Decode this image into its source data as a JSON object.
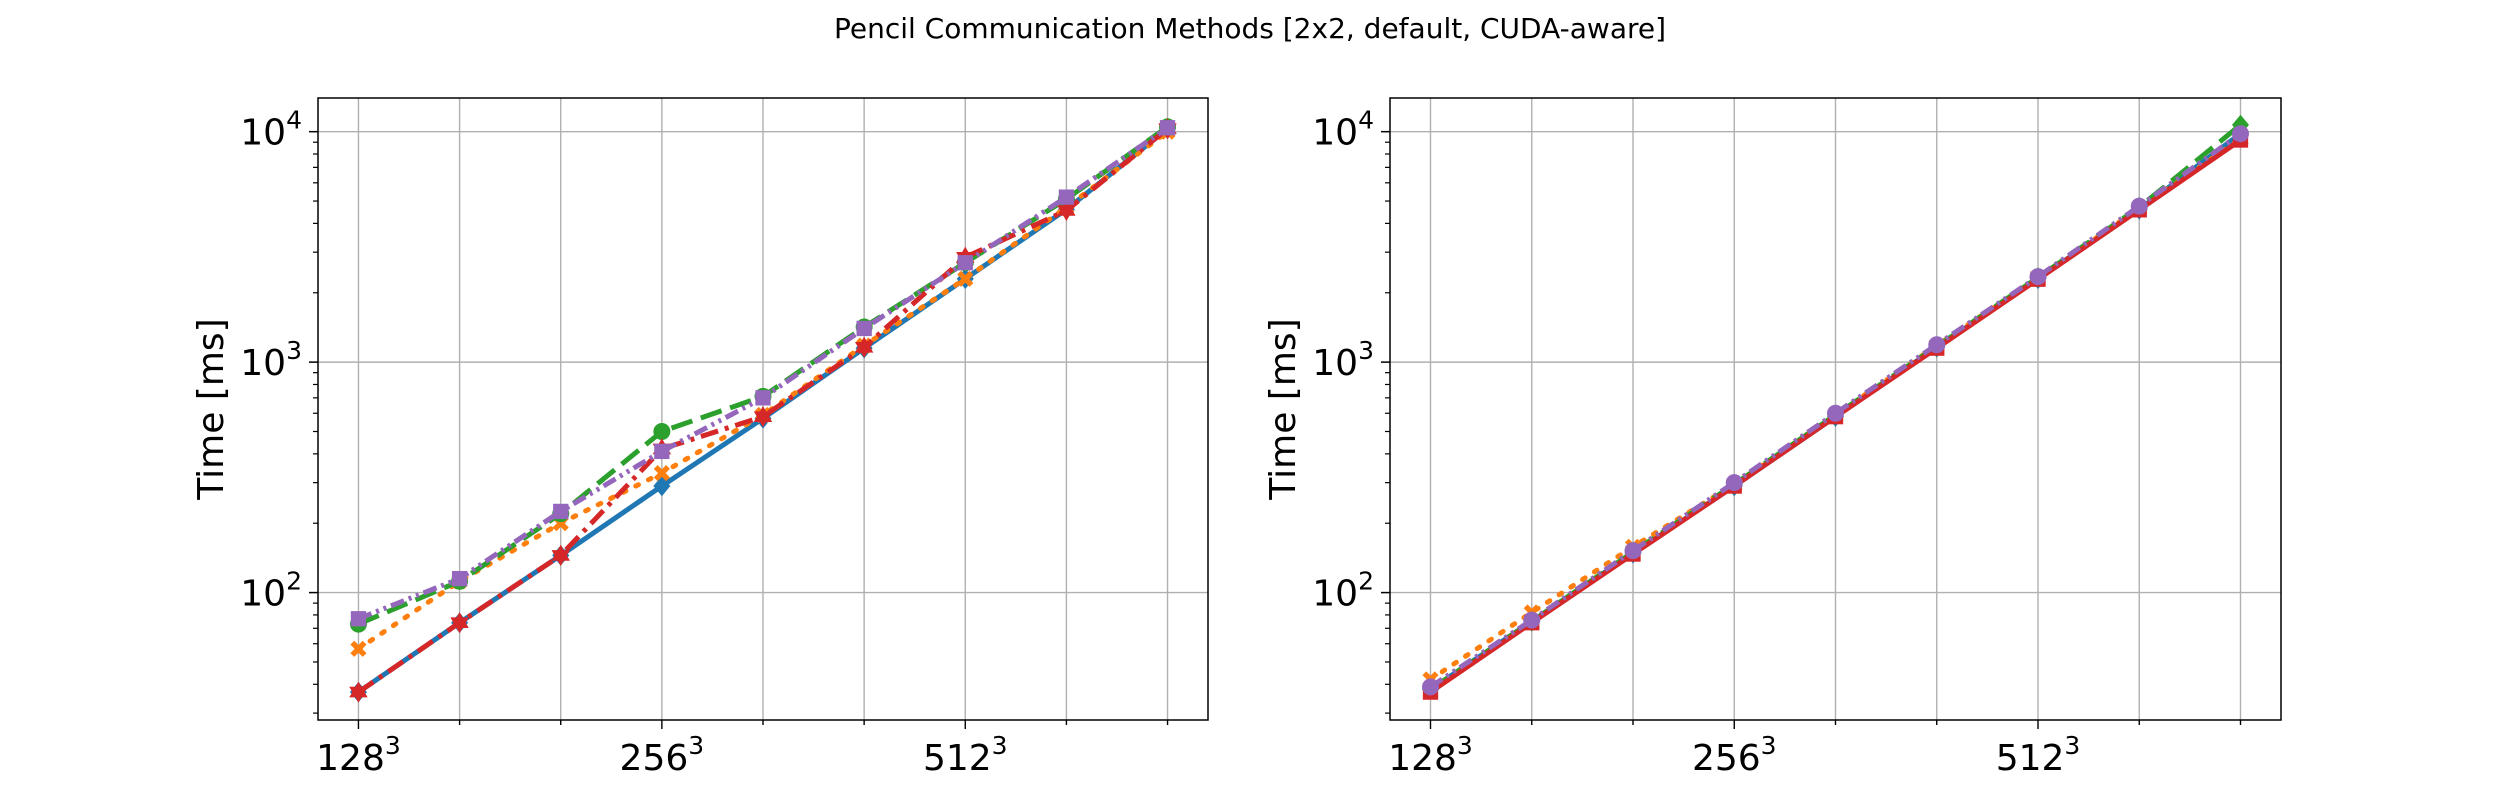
{
  "title": "Pencil Communication Methods [2x2, default, CUDA-aware]",
  "chart_data": [
    {
      "type": "line",
      "ylabel": "Time [ms]",
      "yscale": "log",
      "ylim": [
        28,
        14000
      ],
      "xlim": [
        -0.4,
        8.4
      ],
      "grid": true,
      "x_ticks": [
        {
          "x": 0,
          "base": "128",
          "exp": "3"
        },
        {
          "x": 3,
          "base": "256",
          "exp": "3"
        },
        {
          "x": 6,
          "base": "512",
          "exp": "3"
        }
      ],
      "x_minor_ticks": [
        1,
        2,
        4,
        5,
        7,
        8
      ],
      "y_ticks": [
        {
          "value": 100,
          "base": "10",
          "exp": "2"
        },
        {
          "value": 1000,
          "base": "10",
          "exp": "3"
        },
        {
          "value": 10000,
          "base": "10",
          "exp": "4"
        }
      ],
      "series": [
        {
          "color": "#1f77b4",
          "dash": "",
          "marker": "diamond",
          "x": [
            0,
            1,
            2,
            3,
            4,
            5,
            6,
            7,
            8
          ],
          "values": [
            37,
            74,
            145,
            290,
            570,
            1150,
            2300,
            4600,
            10300
          ]
        },
        {
          "color": "#ff7f0e",
          "dash": "3,11",
          "marker": "x",
          "x": [
            0,
            1,
            2,
            3,
            4,
            5,
            6,
            7,
            8
          ],
          "values": [
            57,
            112,
            200,
            330,
            590,
            1180,
            2300,
            4700,
            10000
          ]
        },
        {
          "color": "#2ca02c",
          "dash": "22,9",
          "marker": "circle",
          "x": [
            0,
            1,
            2,
            3,
            4,
            5,
            6,
            7,
            8
          ],
          "values": [
            73,
            112,
            220,
            500,
            710,
            1420,
            2700,
            5100,
            10500
          ]
        },
        {
          "color": "#d62728",
          "dash": "18,7,4,7",
          "marker": "star",
          "x": [
            0,
            1,
            2,
            3,
            4,
            5,
            6,
            7,
            8
          ],
          "values": [
            37,
            74,
            145,
            420,
            580,
            1160,
            2850,
            4550,
            10300
          ]
        },
        {
          "color": "#9467bd",
          "dash": "14,5,3,5,3,5",
          "marker": "square",
          "x": [
            0,
            1,
            2,
            3,
            4,
            5,
            6,
            7,
            8
          ],
          "values": [
            77,
            115,
            225,
            410,
            700,
            1400,
            2700,
            5200,
            10400
          ]
        }
      ]
    },
    {
      "type": "line",
      "ylabel": "Time [ms]",
      "yscale": "log",
      "ylim": [
        28,
        14000
      ],
      "xlim": [
        -0.4,
        8.4
      ],
      "grid": true,
      "x_ticks": [
        {
          "x": 0,
          "base": "128",
          "exp": "3"
        },
        {
          "x": 3,
          "base": "256",
          "exp": "3"
        },
        {
          "x": 6,
          "base": "512",
          "exp": "3"
        }
      ],
      "x_minor_ticks": [
        1,
        2,
        4,
        5,
        7,
        8
      ],
      "y_ticks": [
        {
          "value": 100,
          "base": "10",
          "exp": "2"
        },
        {
          "value": 1000,
          "base": "10",
          "exp": "3"
        },
        {
          "value": 10000,
          "base": "10",
          "exp": "4"
        }
      ],
      "series": [
        {
          "color": "#1f77b4",
          "dash": "",
          "marker": "diamond",
          "x": [
            0,
            1,
            2,
            3,
            4,
            5,
            6,
            7,
            8
          ],
          "values": [
            38,
            75,
            148,
            290,
            580,
            1160,
            2300,
            4600,
            9800
          ]
        },
        {
          "color": "#ff7f0e",
          "dash": "3,11",
          "marker": "x",
          "x": [
            0,
            1,
            2,
            3,
            4,
            5,
            6,
            7,
            8
          ],
          "values": [
            42,
            82,
            158,
            295,
            590,
            1180,
            2320,
            4650,
            9300
          ]
        },
        {
          "color": "#2ca02c",
          "dash": "22,9",
          "marker": "diamond",
          "x": [
            0,
            1,
            2,
            3,
            4,
            5,
            6,
            7,
            8
          ],
          "values": [
            38,
            75,
            150,
            295,
            590,
            1170,
            2330,
            4700,
            10700
          ]
        },
        {
          "color": "#d62728",
          "dash": "",
          "marker": "square",
          "x": [
            0,
            1,
            2,
            3,
            4,
            5,
            6,
            7,
            8
          ],
          "values": [
            37,
            74,
            147,
            290,
            580,
            1150,
            2290,
            4580,
            9200
          ]
        },
        {
          "color": "#9467bd",
          "dash": "14,5,3,5,3,5",
          "marker": "circle",
          "x": [
            0,
            1,
            2,
            3,
            4,
            5,
            6,
            7,
            8
          ],
          "values": [
            39,
            76,
            152,
            300,
            600,
            1190,
            2350,
            4750,
            9800
          ]
        }
      ]
    }
  ]
}
